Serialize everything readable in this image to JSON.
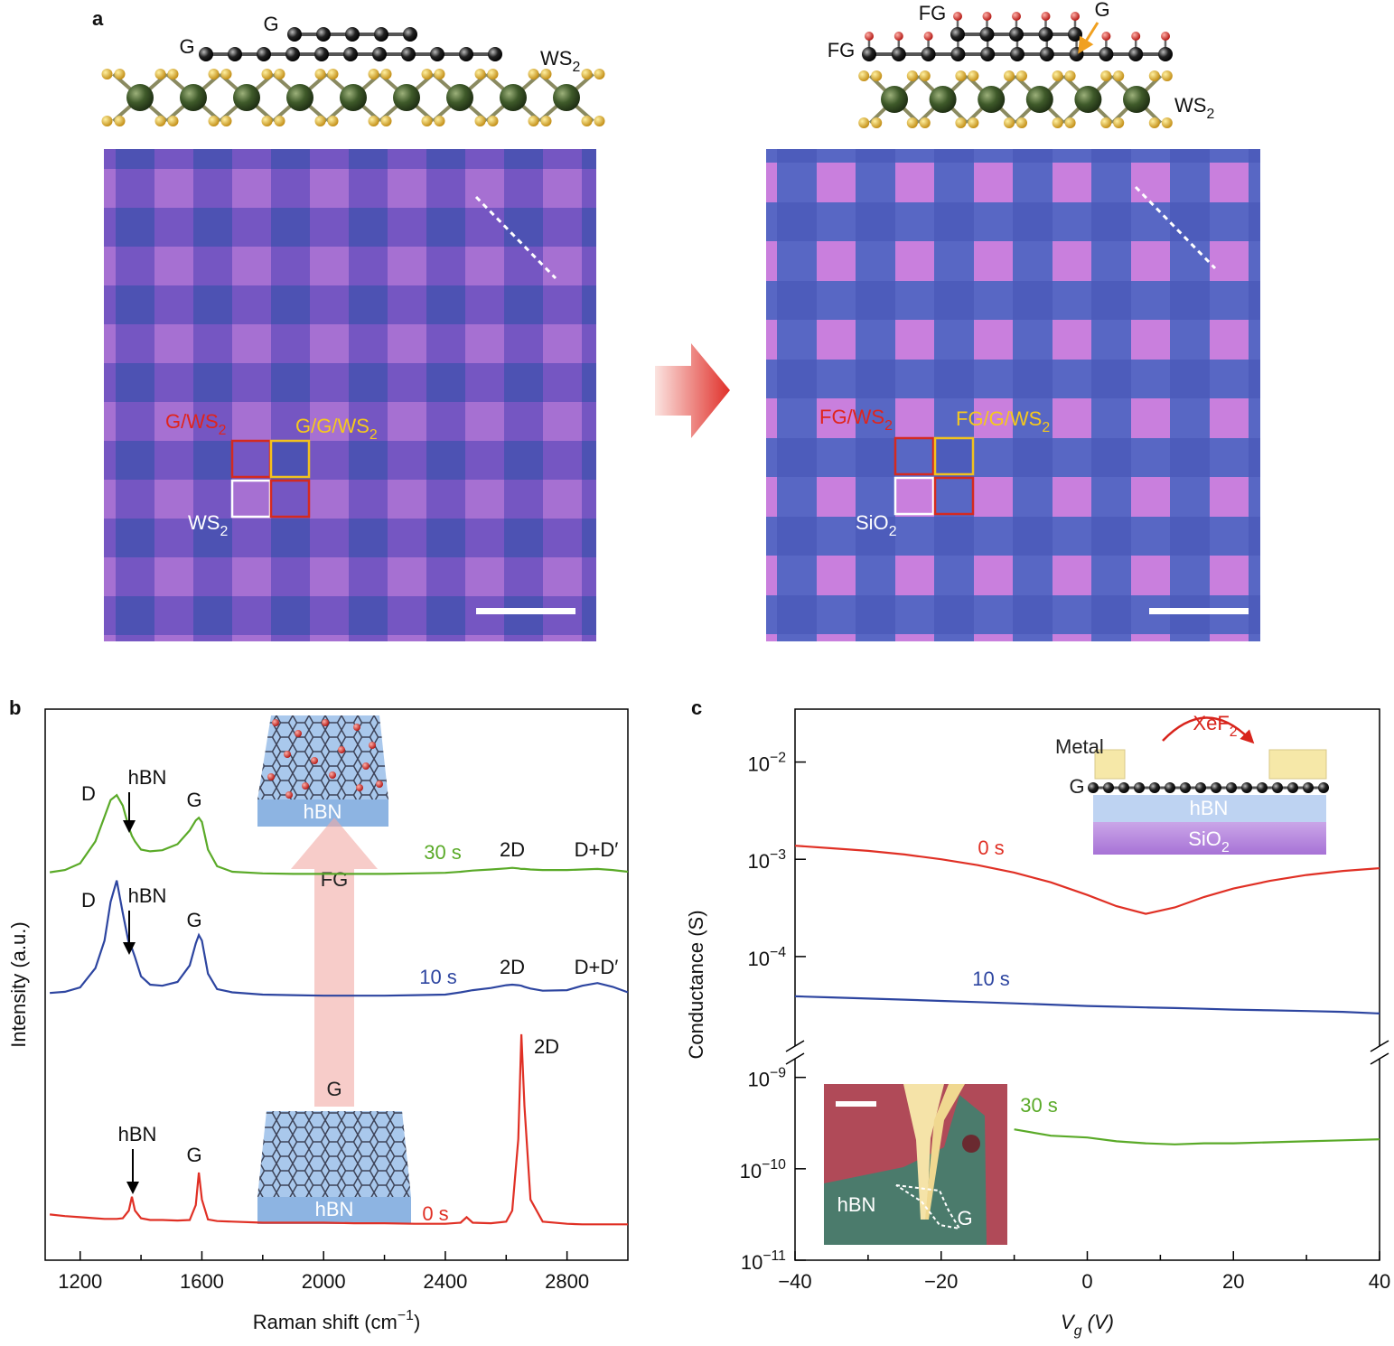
{
  "panel_a": {
    "letter": "a",
    "left": {
      "schematic_labels": [
        {
          "text": "G"
        },
        {
          "text": "G"
        },
        {
          "text": "WS",
          "sub": "2"
        }
      ],
      "image_labels": [
        {
          "text": "G/WS",
          "sub": "2"
        },
        {
          "text": "G/G/WS",
          "sub": "2"
        },
        {
          "text": "WS",
          "sub": "2"
        }
      ]
    },
    "right": {
      "schematic_labels": [
        {
          "text": "FG"
        },
        {
          "text": "FG"
        },
        {
          "text": "G"
        },
        {
          "text": "WS",
          "sub": "2"
        }
      ],
      "image_labels": [
        {
          "text": "FG/WS",
          "sub": "2"
        },
        {
          "text": "FG/G/WS",
          "sub": "2"
        },
        {
          "text": "SiO",
          "sub": "2"
        }
      ]
    }
  },
  "chart_data": [
    {
      "type": "line",
      "letter": "b",
      "xlabel": {
        "text": "Raman shift (cm",
        "sup": "−1",
        "after": ")"
      },
      "ylabel": "Intensity (a.u.)",
      "xlim": [
        1085,
        3000
      ],
      "ylim": [
        0,
        100
      ],
      "xticks": [
        1200,
        1600,
        2000,
        2400,
        2800
      ],
      "xticks_minor": [
        1400,
        1800,
        2200,
        2600
      ],
      "x": [
        1100,
        1150,
        1200,
        1250,
        1280,
        1300,
        1320,
        1340,
        1360,
        1370,
        1380,
        1400,
        1430,
        1470,
        1520,
        1560,
        1580,
        1590,
        1600,
        1620,
        1650,
        1700,
        1800,
        1900,
        2000,
        2100,
        2200,
        2300,
        2400,
        2450,
        2470,
        2490,
        2550,
        2600,
        2620,
        2640,
        2650,
        2660,
        2680,
        2720,
        2800,
        2850,
        2900,
        2950,
        3000
      ],
      "series": [
        {
          "name": "30 s",
          "color": "#5aaa28",
          "values": [
            70.4,
            70.8,
            72,
            76,
            80.5,
            83.5,
            84.4,
            82.5,
            78.5,
            77,
            76,
            74.5,
            74.2,
            74.4,
            75.5,
            78,
            79.8,
            80.3,
            79.5,
            74.5,
            71.5,
            70.5,
            70.2,
            70.1,
            70.1,
            70.1,
            70.1,
            70.2,
            70.3,
            70.5,
            70.6,
            70.7,
            70.9,
            71.1,
            71.2,
            71.1,
            71.0,
            71.0,
            70.9,
            70.8,
            70.8,
            70.9,
            71.0,
            70.8,
            70.5
          ]
        },
        {
          "name": "10 s",
          "color": "#2d45a0",
          "values": [
            48.5,
            48.7,
            49.5,
            53,
            58,
            65,
            68.9,
            63,
            57.5,
            56.6,
            55,
            51.5,
            50,
            49.8,
            50.5,
            53.5,
            57.5,
            59,
            58,
            52,
            49.2,
            48.6,
            48.2,
            48.1,
            48.0,
            48.0,
            48.0,
            48.1,
            48.2,
            48.6,
            48.8,
            49.0,
            49.4,
            49.9,
            50.0,
            49.9,
            49.8,
            49.6,
            49.3,
            48.9,
            49.0,
            49.8,
            50.3,
            49.6,
            48.6
          ]
        },
        {
          "name": "0 s",
          "color": "#e03025",
          "values": [
            8.3,
            8.0,
            7.8,
            7.6,
            7.5,
            7.5,
            7.5,
            7.6,
            9.0,
            11.5,
            9.0,
            7.6,
            7.3,
            7.3,
            7.2,
            7.3,
            10,
            15.9,
            11,
            7.4,
            7.1,
            7.0,
            6.8,
            6.8,
            6.8,
            6.7,
            6.7,
            6.6,
            6.6,
            6.8,
            7.8,
            6.8,
            6.7,
            7.0,
            9,
            22,
            41,
            28,
            11,
            7.0,
            6.6,
            6.5,
            6.5,
            6.5,
            6.5
          ]
        }
      ],
      "annotations": [
        "D",
        "hBN",
        "G",
        "2D",
        "D+D′",
        "D",
        "hBN",
        "G",
        "2D",
        "D+D′",
        "hBN",
        "G",
        "2D"
      ],
      "inset_labels": [
        "hBN",
        "FG",
        "G",
        "hBN"
      ]
    },
    {
      "type": "line",
      "letter": "c",
      "log_y": true,
      "xlabel": {
        "text": "V",
        "sub": "g",
        "after": " (V)"
      },
      "ylabel": "Conductance (S)",
      "xlim": [
        -40,
        40
      ],
      "ylim": [
        1e-11,
        0.035
      ],
      "ybreak": [
        1.6e-09,
        1.2e-05
      ],
      "xticks": [
        {
          "value": -40,
          "label": "−40"
        },
        {
          "value": -20,
          "label": "−20"
        },
        0,
        20,
        40
      ],
      "xticks_minor": [
        -30,
        -10,
        10,
        30
      ],
      "yticks": [
        {
          "value": 1e-11,
          "label": "10",
          "sup": "−11"
        },
        {
          "value": 1e-10,
          "label": "10",
          "sup": "−10"
        },
        {
          "value": 1e-09,
          "label": "10",
          "sup": "−9"
        },
        {
          "value": 0.0001,
          "label": "10",
          "sup": "−4"
        },
        {
          "value": 0.001,
          "label": "10",
          "sup": "−3"
        },
        {
          "value": 0.01,
          "label": "10",
          "sup": "−2"
        }
      ],
      "x": [
        -40,
        -35,
        -30,
        -25,
        -20,
        -15,
        -10,
        -5,
        0,
        4,
        8,
        12,
        16,
        20,
        25,
        30,
        35,
        40
      ],
      "series": [
        {
          "name": "0 s",
          "color": "#e03025",
          "values": [
            0.00138,
            0.0013,
            0.00122,
            0.00112,
            0.001,
            0.00087,
            0.00073,
            0.00058,
            0.00043,
            0.00033,
            0.000275,
            0.00032,
            0.00041,
            0.0005,
            0.0006,
            0.00069,
            0.00076,
            0.00081
          ]
        },
        {
          "name": "10 s",
          "color": "#2d45a0",
          "values": [
            3.9e-05,
            3.8e-05,
            3.7e-05,
            3.6e-05,
            3.5e-05,
            3.4e-05,
            3.3e-05,
            3.2e-05,
            3.1e-05,
            3.05e-05,
            3e-05,
            2.95e-05,
            2.9e-05,
            2.85e-05,
            2.8e-05,
            2.75e-05,
            2.7e-05,
            2.6e-05
          ]
        },
        {
          "name": "30 s",
          "color": "#5aaa28",
          "values": [
            null,
            null,
            null,
            null,
            null,
            null,
            2.7e-10,
            2.3e-10,
            2.2e-10,
            2e-10,
            1.9e-10,
            1.85e-10,
            1.9e-10,
            1.9e-10,
            1.95e-10,
            2e-10,
            2.05e-10,
            2.1e-10
          ]
        }
      ],
      "inset_labels": [
        {
          "text": "Metal"
        },
        {
          "text": "XeF",
          "sub": "2"
        },
        {
          "text": "G"
        },
        {
          "text": "hBN"
        },
        {
          "text": "SiO",
          "sub": "2"
        },
        {
          "text": "hBN"
        },
        {
          "text": "G"
        }
      ]
    }
  ]
}
